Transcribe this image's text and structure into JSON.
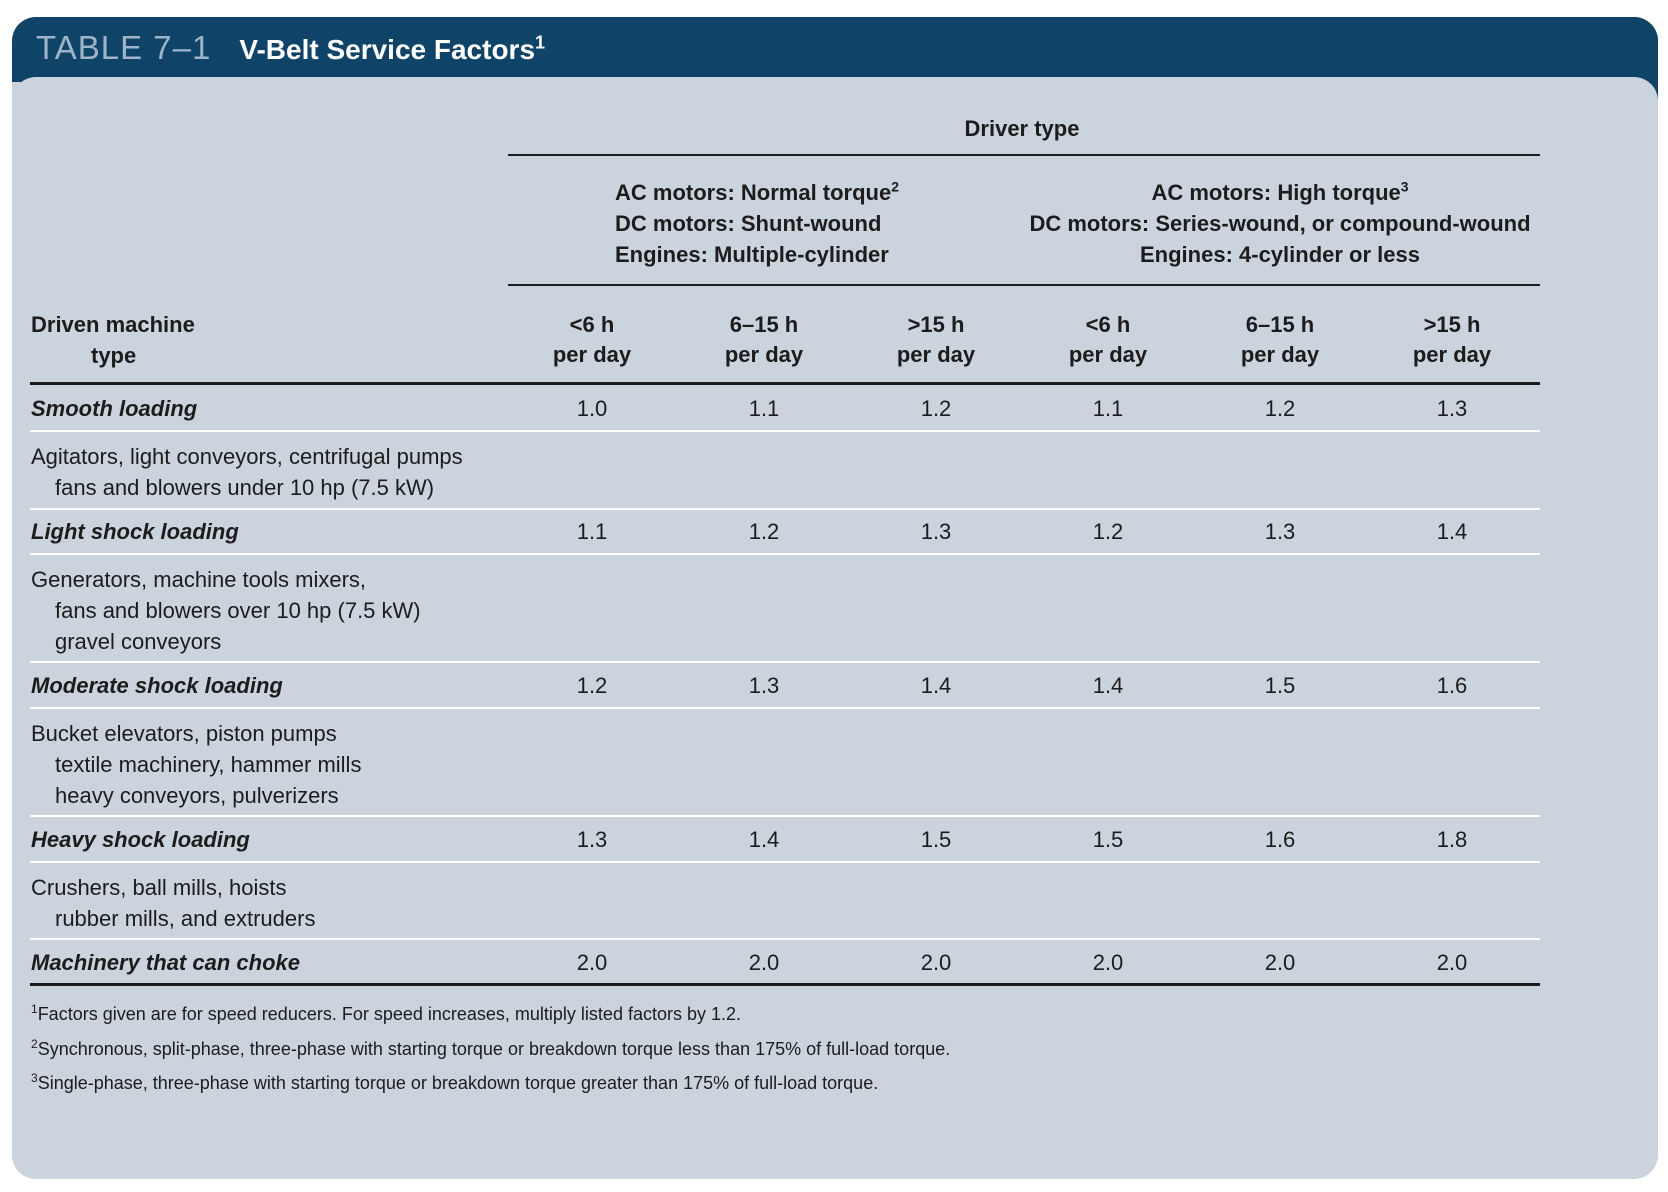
{
  "title": {
    "number": "TABLE 7–1",
    "text": "V-Belt Service Factors",
    "sup": "1"
  },
  "driver_type": "Driver type",
  "groups": [
    {
      "line1": "AC motors: Normal torque",
      "sup": "2",
      "line2": "DC motors: Shunt-wound",
      "line3": "Engines: Multiple-cylinder"
    },
    {
      "line1": "AC motors: High torque",
      "sup": "3",
      "line2": "DC motors: Series-wound, or compound-wound",
      "line3": "Engines: 4-cylinder or less"
    }
  ],
  "driven_header": {
    "line1": "Driven machine",
    "line2": "type"
  },
  "hours": [
    {
      "line1": "<6 h",
      "line2": "per day"
    },
    {
      "line1": "6–15 h",
      "line2": "per day"
    },
    {
      "line1": ">15 h",
      "line2": "per day"
    },
    {
      "line1": "<6 h",
      "line2": "per day"
    },
    {
      "line1": "6–15 h",
      "line2": "per day"
    },
    {
      "line1": ">15 h",
      "line2": "per day"
    }
  ],
  "rows": [
    {
      "label": "Smooth loading",
      "values": [
        "1.0",
        "1.1",
        "1.2",
        "1.1",
        "1.2",
        "1.3"
      ],
      "desc": [
        "Agitators, light conveyors, centrifugal pumps",
        "fans and blowers under 10 hp (7.5 kW)"
      ]
    },
    {
      "label": "Light shock loading",
      "values": [
        "1.1",
        "1.2",
        "1.3",
        "1.2",
        "1.3",
        "1.4"
      ],
      "desc": [
        "Generators, machine tools mixers,",
        "fans and blowers over 10 hp (7.5 kW)",
        "gravel conveyors"
      ]
    },
    {
      "label": "Moderate shock loading",
      "values": [
        "1.2",
        "1.3",
        "1.4",
        "1.4",
        "1.5",
        "1.6"
      ],
      "desc": [
        "Bucket elevators, piston pumps",
        "textile machinery, hammer mills",
        "heavy conveyors, pulverizers"
      ]
    },
    {
      "label": "Heavy shock loading",
      "values": [
        "1.3",
        "1.4",
        "1.5",
        "1.5",
        "1.6",
        "1.8"
      ],
      "desc": [
        "Crushers, ball mills, hoists",
        "rubber mills, and extruders"
      ]
    },
    {
      "label": "Machinery that can choke",
      "values": [
        "2.0",
        "2.0",
        "2.0",
        "2.0",
        "2.0",
        "2.0"
      ],
      "desc": []
    }
  ],
  "footnotes": [
    {
      "sup": "1",
      "text": "Factors given are for speed reducers. For speed increases, multiply listed factors by 1.2."
    },
    {
      "sup": "2",
      "text": "Synchronous, split-phase, three-phase with starting torque or breakdown torque less than 175% of full-load torque."
    },
    {
      "sup": "3",
      "text": "Single-phase, three-phase with starting torque or breakdown torque greater than 175% of full-load torque."
    }
  ]
}
